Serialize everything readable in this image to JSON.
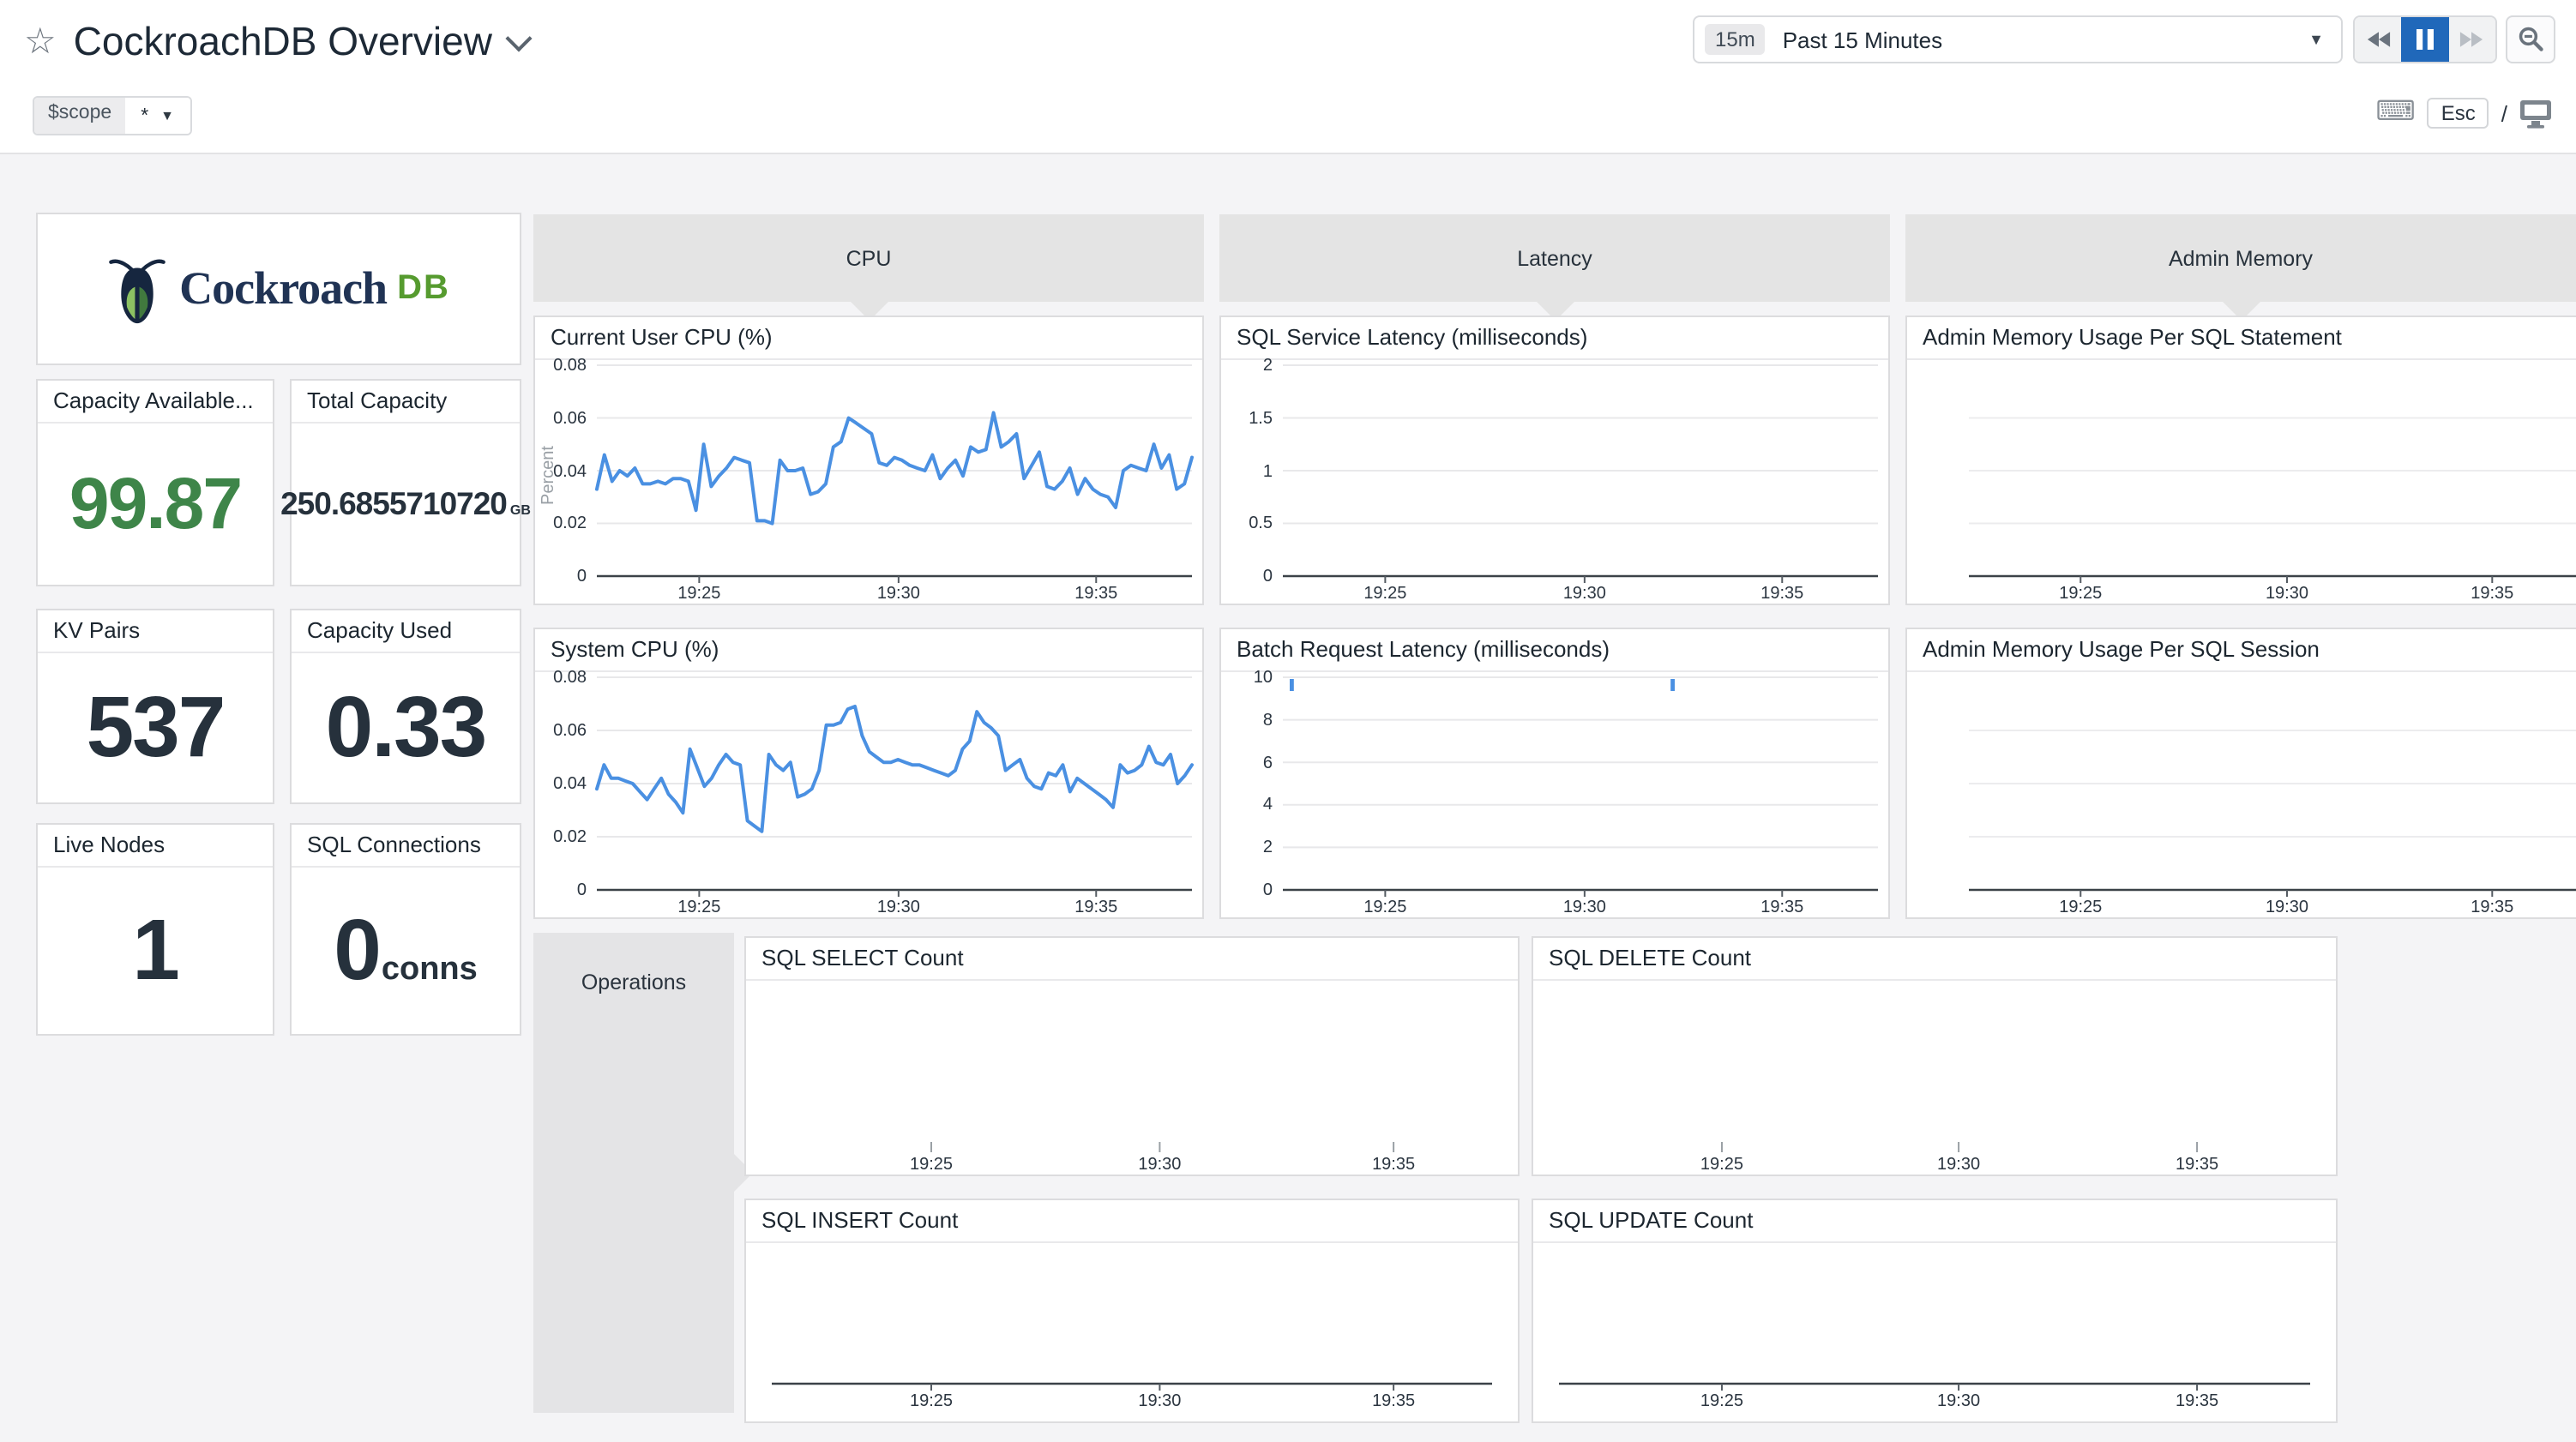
{
  "header": {
    "title": "CockroachDB Overview",
    "time_range": {
      "badge": "15m",
      "label": "Past 15 Minutes"
    },
    "scope": {
      "label": "$scope",
      "value": "*"
    },
    "esc_key": "Esc",
    "slash": "/"
  },
  "branding": {
    "logo_word": "Cockroach",
    "logo_suffix": "DB"
  },
  "sections": {
    "cpu": "CPU",
    "latency": "Latency",
    "admin_memory": "Admin Memory",
    "operations": "Operations"
  },
  "stat_cards": [
    {
      "title": "Capacity Available...",
      "value": "99.87",
      "suffix": ""
    },
    {
      "title": "Total Capacity",
      "value": "250.6855710720",
      "suffix": "GB"
    },
    {
      "title": "KV Pairs",
      "value": "537",
      "suffix": ""
    },
    {
      "title": "Capacity Used",
      "value": "0.33",
      "suffix": ""
    },
    {
      "title": "Live Nodes",
      "value": "1",
      "suffix": ""
    },
    {
      "title": "SQL Connections",
      "value": "0",
      "suffix": "conns"
    }
  ],
  "colors": {
    "accent_blue": "#2068ba",
    "line_blue": "#4a90e2",
    "green_value": "#3e8549",
    "section_gray": "#e4e4e4",
    "background": "#f4f4f6"
  },
  "chart_data": [
    {
      "id": "current-user-cpu",
      "type": "line",
      "title": "Current User CPU (%)",
      "ylabel": "Percent",
      "ylim": [
        0,
        0.08
      ],
      "grid": true,
      "legend": "none",
      "line_color": "#4a90e2",
      "y_ticks": [
        {
          "v": 0.08,
          "label": "0.08"
        },
        {
          "v": 0.06,
          "label": "0.06"
        },
        {
          "v": 0.04,
          "label": "0.04"
        },
        {
          "v": 0.02,
          "label": "0.02"
        },
        {
          "v": 0,
          "label": "0"
        }
      ],
      "x_ticks": [
        {
          "f": 0.172,
          "label": "19:25"
        },
        {
          "f": 0.507,
          "label": "19:30"
        },
        {
          "f": 0.839,
          "label": "19:35"
        }
      ],
      "x_range": [
        "19:22",
        "19:37"
      ],
      "values": [
        0.033,
        0.046,
        0.036,
        0.04,
        0.038,
        0.041,
        0.035,
        0.035,
        0.036,
        0.035,
        0.037,
        0.037,
        0.036,
        0.025,
        0.05,
        0.034,
        0.038,
        0.041,
        0.045,
        0.044,
        0.043,
        0.021,
        0.021,
        0.02,
        0.044,
        0.04,
        0.04,
        0.041,
        0.031,
        0.032,
        0.035,
        0.049,
        0.051,
        0.06,
        0.058,
        0.056,
        0.054,
        0.043,
        0.042,
        0.045,
        0.044,
        0.042,
        0.041,
        0.04,
        0.046,
        0.037,
        0.041,
        0.044,
        0.038,
        0.049,
        0.047,
        0.048,
        0.062,
        0.049,
        0.051,
        0.054,
        0.037,
        0.042,
        0.047,
        0.034,
        0.033,
        0.036,
        0.041,
        0.031,
        0.037,
        0.033,
        0.031,
        0.03,
        0.026,
        0.04,
        0.042,
        0.041,
        0.04,
        0.05,
        0.041,
        0.046,
        0.033,
        0.035,
        0.045
      ]
    },
    {
      "id": "system-cpu",
      "type": "line",
      "title": "System CPU (%)",
      "ylim": [
        0,
        0.08
      ],
      "grid": true,
      "legend": "none",
      "line_color": "#4a90e2",
      "y_ticks": [
        {
          "v": 0.08,
          "label": "0.08"
        },
        {
          "v": 0.06,
          "label": "0.06"
        },
        {
          "v": 0.04,
          "label": "0.04"
        },
        {
          "v": 0.02,
          "label": "0.02"
        },
        {
          "v": 0,
          "label": "0"
        }
      ],
      "x_ticks": [
        {
          "f": 0.172,
          "label": "19:25"
        },
        {
          "f": 0.507,
          "label": "19:30"
        },
        {
          "f": 0.839,
          "label": "19:35"
        }
      ],
      "x_range": [
        "19:22",
        "19:37"
      ],
      "values": [
        0.038,
        0.047,
        0.042,
        0.042,
        0.041,
        0.04,
        0.037,
        0.034,
        0.038,
        0.042,
        0.036,
        0.033,
        0.029,
        0.053,
        0.046,
        0.039,
        0.042,
        0.047,
        0.051,
        0.048,
        0.047,
        0.026,
        0.024,
        0.022,
        0.051,
        0.047,
        0.045,
        0.048,
        0.035,
        0.036,
        0.038,
        0.045,
        0.062,
        0.062,
        0.063,
        0.068,
        0.069,
        0.058,
        0.052,
        0.05,
        0.048,
        0.048,
        0.049,
        0.048,
        0.047,
        0.047,
        0.046,
        0.045,
        0.044,
        0.043,
        0.045,
        0.053,
        0.056,
        0.067,
        0.063,
        0.061,
        0.058,
        0.045,
        0.047,
        0.049,
        0.042,
        0.039,
        0.038,
        0.044,
        0.043,
        0.047,
        0.037,
        0.042,
        0.04,
        0.038,
        0.036,
        0.034,
        0.031,
        0.047,
        0.044,
        0.045,
        0.047,
        0.054,
        0.048,
        0.047,
        0.051,
        0.04,
        0.043,
        0.047
      ]
    },
    {
      "id": "sql-service-latency",
      "type": "line",
      "title": "SQL Service Latency (milliseconds)",
      "ylim": [
        0,
        2
      ],
      "grid": true,
      "legend": "none",
      "line_color": "#4a90e2",
      "y_ticks": [
        {
          "v": 2,
          "label": "2"
        },
        {
          "v": 1.5,
          "label": "1.5"
        },
        {
          "v": 1,
          "label": "1"
        },
        {
          "v": 0.5,
          "label": "0.5"
        },
        {
          "v": 0,
          "label": "0"
        }
      ],
      "x_ticks": [
        {
          "f": 0.172,
          "label": "19:25"
        },
        {
          "f": 0.507,
          "label": "19:30"
        },
        {
          "f": 0.839,
          "label": "19:35"
        }
      ],
      "values": []
    },
    {
      "id": "batch-request-latency",
      "type": "line",
      "title": "Batch Request Latency (milliseconds)",
      "ylim": [
        0,
        10
      ],
      "grid": true,
      "legend": "none",
      "line_color": "#4a90e2",
      "y_ticks": [
        {
          "v": 10,
          "label": "10"
        },
        {
          "v": 8,
          "label": "8"
        },
        {
          "v": 6,
          "label": "6"
        },
        {
          "v": 4,
          "label": "4"
        },
        {
          "v": 2,
          "label": "2"
        },
        {
          "v": 0,
          "label": "0"
        }
      ],
      "x_ticks": [
        {
          "f": 0.172,
          "label": "19:25"
        },
        {
          "f": 0.507,
          "label": "19:30"
        },
        {
          "f": 0.839,
          "label": "19:35"
        }
      ],
      "spikes": [
        {
          "f": 0.015,
          "clipped_at": 10
        },
        {
          "f": 0.655,
          "clipped_at": 10
        }
      ],
      "values": []
    },
    {
      "id": "admin-memory-per-statement",
      "type": "line",
      "title": "Admin Memory Usage Per SQL Statement",
      "grid": true,
      "grid_rows": 3,
      "legend": "none",
      "line_color": "#4a90e2",
      "pad": {
        "r": 0
      },
      "x_ticks": [
        {
          "f": 0.184,
          "label": "19:25"
        },
        {
          "f": 0.524,
          "label": "19:30"
        },
        {
          "f": 0.862,
          "label": "19:35"
        }
      ],
      "values": []
    },
    {
      "id": "admin-memory-per-session",
      "type": "line",
      "title": "Admin Memory Usage Per SQL Session",
      "grid": true,
      "grid_rows": 3,
      "legend": "none",
      "line_color": "#4a90e2",
      "pad": {
        "r": 0
      },
      "x_ticks": [
        {
          "f": 0.184,
          "label": "19:25"
        },
        {
          "f": 0.524,
          "label": "19:30"
        },
        {
          "f": 0.862,
          "label": "19:35"
        }
      ],
      "values": []
    },
    {
      "id": "sql-select-count",
      "type": "line",
      "title": "SQL SELECT Count",
      "grid": false,
      "legend": "none",
      "line_color": "#4a90e2",
      "axis_line": false,
      "pad": {
        "l": 0,
        "r": 0
      },
      "x_ticks": [
        {
          "f": 0.24,
          "label": "19:25"
        },
        {
          "f": 0.536,
          "label": "19:30"
        },
        {
          "f": 0.839,
          "label": "19:35"
        }
      ],
      "values": []
    },
    {
      "id": "sql-delete-count",
      "type": "line",
      "title": "SQL DELETE Count",
      "grid": false,
      "legend": "none",
      "line_color": "#4a90e2",
      "axis_line": false,
      "pad": {
        "l": 0,
        "r": 0
      },
      "x_ticks": [
        {
          "f": 0.235,
          "label": "19:25"
        },
        {
          "f": 0.53,
          "label": "19:30"
        },
        {
          "f": 0.827,
          "label": "19:35"
        }
      ],
      "values": []
    },
    {
      "id": "sql-insert-count",
      "type": "line",
      "title": "SQL INSERT Count",
      "grid": false,
      "legend": "none",
      "line_color": "#4a90e2",
      "axis_line": true,
      "pad": {
        "l": 0,
        "r": 0,
        "b": 22
      },
      "axis_inset": 15,
      "x_ticks": [
        {
          "f": 0.24,
          "label": "19:25"
        },
        {
          "f": 0.536,
          "label": "19:30"
        },
        {
          "f": 0.839,
          "label": "19:35"
        }
      ],
      "values": []
    },
    {
      "id": "sql-update-count",
      "type": "line",
      "title": "SQL UPDATE Count",
      "grid": false,
      "legend": "none",
      "line_color": "#4a90e2",
      "axis_line": true,
      "pad": {
        "l": 0,
        "r": 0,
        "b": 22
      },
      "axis_inset": 15,
      "x_ticks": [
        {
          "f": 0.235,
          "label": "19:25"
        },
        {
          "f": 0.53,
          "label": "19:30"
        },
        {
          "f": 0.827,
          "label": "19:35"
        }
      ],
      "values": []
    }
  ]
}
